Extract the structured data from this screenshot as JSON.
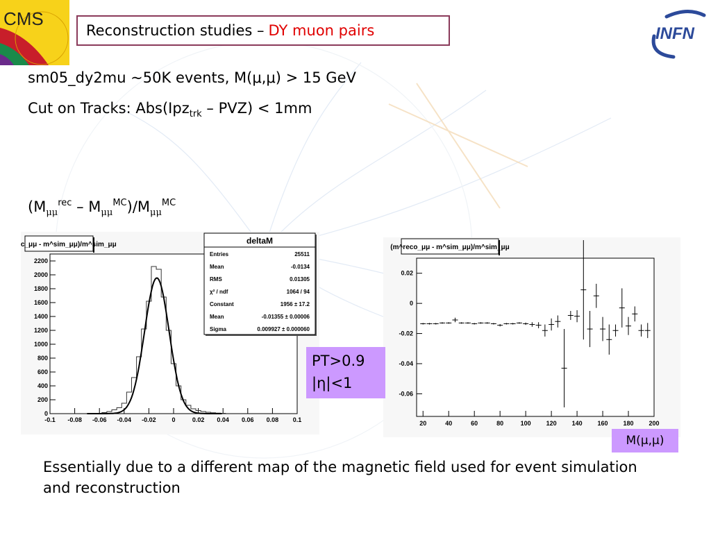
{
  "slide": {
    "title_main": "Reconstruction studies –",
    "title_highlight": "DY muon pairs",
    "line1": "sm05_dy2mu ~50K events, M(μ,μ) > 15 GeV",
    "line2_prefix": "Cut on Tracks:  Abs(Ipz",
    "line2_sub": "trk",
    "line2_suffix": " – PVZ) < 1mm",
    "formula": {
      "p1": "(M",
      "s1": "μμ",
      "u1": "rec",
      "p2": " – M",
      "s2": "μμ",
      "u2": "MC",
      "p3": ")/M",
      "s3": "μμ",
      "u3": "MC"
    },
    "cut_line1": "PT>0.9",
    "cut_line2": "|η|<1",
    "mass_label": "M(μ,μ)",
    "bottom_text": "Essentially due to a different map of the magnetic field used for event simulation and reconstruction",
    "logo_left": "CMS",
    "logo_right": "INFN",
    "colors": {
      "title_border": "#8a3a5a",
      "highlight": "#e00000",
      "label_box": "#cc99ff"
    }
  },
  "chart_data": [
    {
      "type": "histogram",
      "title": "(m^rec_μμ - m^sim_μμ)/m^sim_μμ",
      "x_tick_labels": [
        "-0.1",
        "-0.08",
        "-0.06",
        "-0.04",
        "-0.02",
        "0",
        "0.02",
        "0.04",
        "0.06",
        "0.08",
        "0.1"
      ],
      "y_tick_labels": [
        "0",
        "200",
        "400",
        "600",
        "800",
        "1000",
        "1200",
        "1400",
        "1600",
        "1800",
        "2000",
        "2200"
      ],
      "xlim": [
        -0.1,
        0.1
      ],
      "ylim": [
        0,
        2300
      ],
      "bins_x": [
        -0.056,
        -0.052,
        -0.048,
        -0.044,
        -0.04,
        -0.036,
        -0.032,
        -0.028,
        -0.024,
        -0.02,
        -0.016,
        -0.012,
        -0.008,
        -0.004,
        0.0,
        0.004,
        0.008,
        0.012,
        0.016,
        0.02,
        0.024,
        0.028,
        0.032,
        0.036,
        0.04
      ],
      "bins_y": [
        15,
        30,
        55,
        85,
        150,
        310,
        520,
        820,
        1220,
        1620,
        2120,
        2080,
        1680,
        1200,
        720,
        400,
        200,
        120,
        70,
        45,
        30,
        20,
        12,
        8,
        5
      ],
      "fit_function": "gaussian",
      "stats": {
        "name": "deltaM",
        "rows": [
          [
            "Entries",
            "25511"
          ],
          [
            "Mean",
            "-0.0134"
          ],
          [
            "RMS",
            "0.01305"
          ],
          [
            "χ² / ndf",
            "1064 / 94"
          ],
          [
            "Constant",
            "1956 ± 17.2"
          ],
          [
            "Mean",
            "-0.01355 ± 0.00006"
          ],
          [
            "Sigma",
            "0.009927 ± 0.000060"
          ]
        ]
      }
    },
    {
      "type": "scatter",
      "title": "(m^reco_μμ - m^sim_μμ)/m^sim_μμ",
      "x_tick_labels": [
        "20",
        "40",
        "60",
        "80",
        "100",
        "120",
        "140",
        "160",
        "180",
        "200"
      ],
      "y_tick_labels": [
        "-0.06",
        "-0.04",
        "-0.02",
        "0",
        "0.02"
      ],
      "xlim": [
        15,
        200
      ],
      "ylim": [
        -0.075,
        0.03
      ],
      "x": [
        20,
        25,
        30,
        35,
        40,
        45,
        50,
        55,
        60,
        65,
        70,
        75,
        80,
        85,
        90,
        95,
        100,
        105,
        110,
        115,
        120,
        125,
        130,
        135,
        140,
        145,
        150,
        155,
        160,
        165,
        170,
        175,
        180,
        185,
        190,
        195
      ],
      "y": [
        -0.0135,
        -0.0135,
        -0.0135,
        -0.013,
        -0.013,
        -0.011,
        -0.013,
        -0.013,
        -0.0135,
        -0.013,
        -0.013,
        -0.0135,
        -0.0145,
        -0.0135,
        -0.0135,
        -0.013,
        -0.0135,
        -0.014,
        -0.0145,
        -0.018,
        -0.014,
        -0.012,
        -0.043,
        -0.008,
        -0.0085,
        0.009,
        -0.017,
        0.005,
        -0.017,
        -0.024,
        -0.018,
        -0.003,
        -0.015,
        -0.007,
        -0.018,
        -0.018
      ],
      "yerr": [
        0.0005,
        0.0005,
        0.0005,
        0.0005,
        0.0005,
        0.0015,
        0.0005,
        0.0005,
        0.0005,
        0.0005,
        0.0005,
        0.0005,
        0.0008,
        0.0005,
        0.0005,
        0.0005,
        0.0008,
        0.0015,
        0.002,
        0.004,
        0.004,
        0.004,
        0.026,
        0.003,
        0.004,
        0.033,
        0.012,
        0.008,
        0.008,
        0.01,
        0.004,
        0.013,
        0.006,
        0.005,
        0.004,
        0.005
      ]
    }
  ]
}
